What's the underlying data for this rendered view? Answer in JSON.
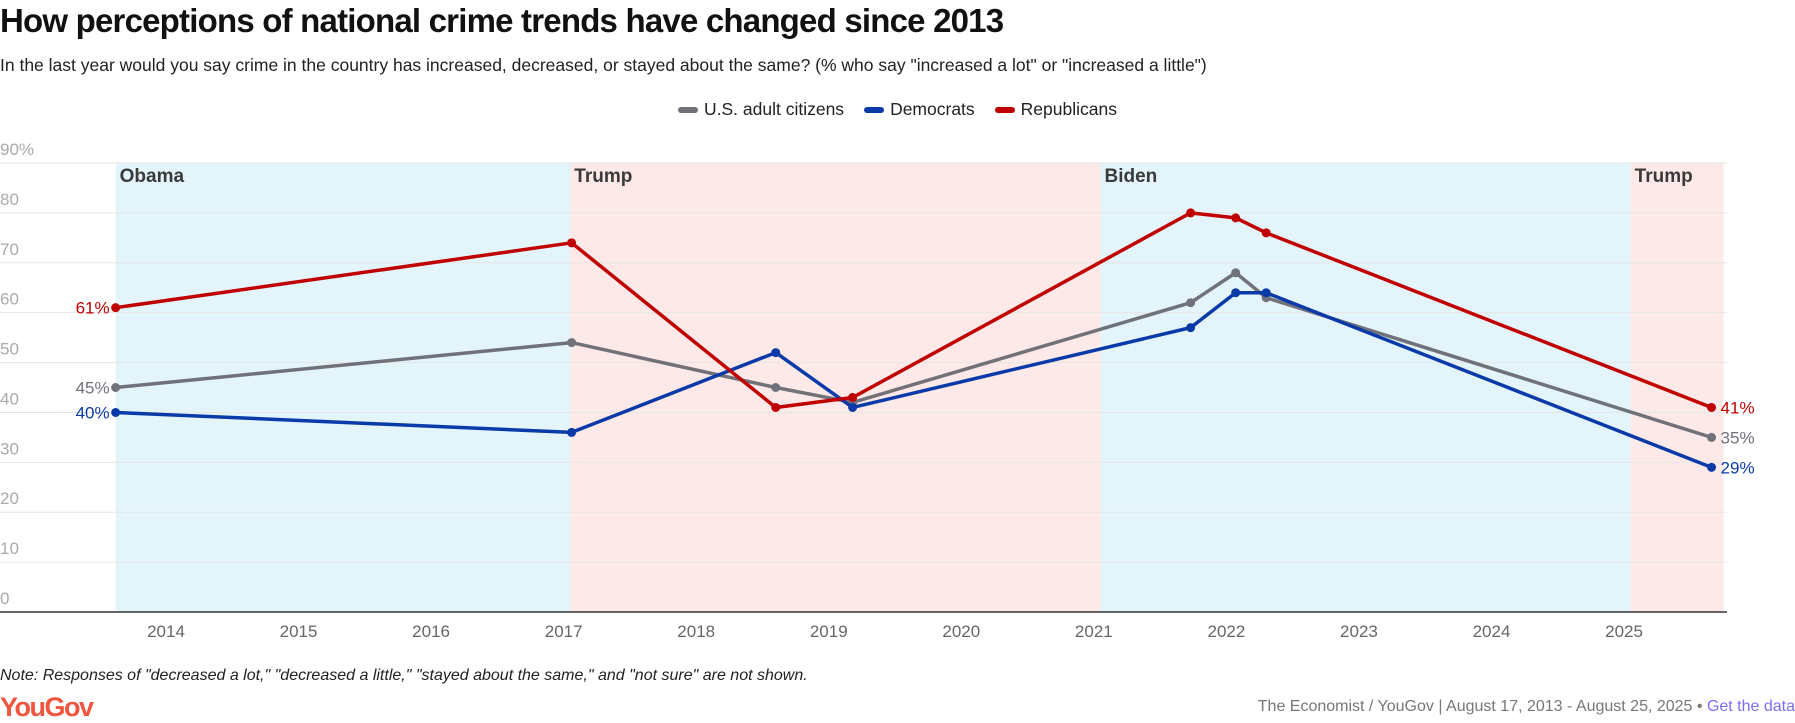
{
  "chart_data": {
    "type": "line",
    "title": "How perceptions of national crime trends have changed since 2013",
    "subtitle": "In the last year would you say crime in the country has increased, decreased, or stayed about the same? (% who say \"increased a lot\" or \"increased a little\")",
    "xlabel": "",
    "ylabel": "",
    "ylim": [
      0,
      90
    ],
    "xlim": [
      2013.05,
      2025.75
    ],
    "y_ticks": [
      {
        "value": 0,
        "label": "0"
      },
      {
        "value": 10,
        "label": "10"
      },
      {
        "value": 20,
        "label": "20"
      },
      {
        "value": 30,
        "label": "30"
      },
      {
        "value": 40,
        "label": "40"
      },
      {
        "value": 50,
        "label": "50"
      },
      {
        "value": 60,
        "label": "60"
      },
      {
        "value": 70,
        "label": "70"
      },
      {
        "value": 80,
        "label": "80"
      },
      {
        "value": 90,
        "label": "90%"
      }
    ],
    "x_ticks": [
      "2014",
      "2015",
      "2016",
      "2017",
      "2018",
      "2019",
      "2020",
      "2021",
      "2022",
      "2023",
      "2024",
      "2025"
    ],
    "grid": true,
    "legend_position": "top-center",
    "x": [
      2013.62,
      2017.06,
      2018.6,
      2019.18,
      2021.73,
      2022.07,
      2022.3,
      2025.66
    ],
    "series": [
      {
        "name": "U.S. adult citizens",
        "color": "#71717a",
        "values": [
          45,
          54,
          45,
          42,
          62,
          68,
          63,
          35
        ],
        "start_label": "45%",
        "end_label": "35%"
      },
      {
        "name": "Democrats",
        "color": "#0a3aa8",
        "values": [
          40,
          36,
          52,
          41,
          57,
          64,
          64,
          29
        ],
        "start_label": "40%",
        "end_label": "29%"
      },
      {
        "name": "Republicans",
        "color": "#c00000",
        "values": [
          61,
          74,
          41,
          43,
          80,
          79,
          76,
          41
        ],
        "start_label": "61%",
        "end_label": "41%"
      }
    ],
    "periods": [
      {
        "label": "Obama",
        "start": 2013.62,
        "end": 2017.05,
        "color": "#e3f4fb"
      },
      {
        "label": "Trump",
        "start": 2017.05,
        "end": 2021.05,
        "color": "#fde9e7"
      },
      {
        "label": "Biden",
        "start": 2021.05,
        "end": 2025.05,
        "color": "#e3f4fb"
      },
      {
        "label": "Trump",
        "start": 2025.05,
        "end": 2025.75,
        "color": "#fde9e7"
      }
    ]
  },
  "note": "Note: Responses of \"decreased a lot,\" \"decreased a little,\" \"stayed about the same,\" and \"not sure\" are not shown.",
  "footer": {
    "logo": "YouGov",
    "source": "The Economist / YouGov | August 17, 2013 - August 25, 2025 • ",
    "link": "Get the data"
  }
}
